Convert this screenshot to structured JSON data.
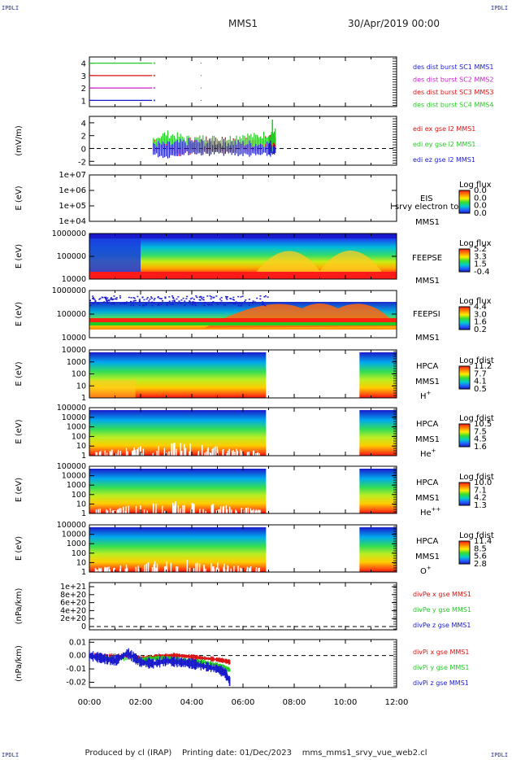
{
  "corners": {
    "top_left": "IPDLI",
    "top_right": "IPDLI",
    "bottom_left": "IPDLI",
    "bottom_right": "IPDLI"
  },
  "header": {
    "spacecraft": "MMS1",
    "datetime": "30/Apr/2019 00:00"
  },
  "footer": {
    "credit": "Produced by cl (IRAP)",
    "printing_date": "Printing date: 01/Dec/2023",
    "script": "mms_mms1_srvy_vue_web2.cl"
  },
  "colors": {
    "blue": "#1a1acc",
    "red": "#dd1111",
    "magenta": "#cc22cc",
    "green": "#22cc22",
    "frame": "#000000"
  },
  "chart_data": [
    {
      "panel": "burst",
      "type": "line",
      "yticks": [
        "1",
        "2",
        "3",
        "4"
      ],
      "series": [
        {
          "name": "des dist burst SC1 MMS1",
          "color": "#1a1acc",
          "level": 1,
          "x": [
            0.0,
            2.45
          ]
        },
        {
          "name": "des dist burst SC2 MMS2",
          "color": "#cc22cc",
          "level": 2,
          "x": [
            0.0,
            2.45
          ]
        },
        {
          "name": "des dist burst SC3 MMS3",
          "color": "#dd1111",
          "level": 3,
          "x": [
            0.0,
            2.45
          ]
        },
        {
          "name": "des dist burst SC4 MMS4",
          "color": "#22cc22",
          "level": 4,
          "x": [
            0.0,
            2.45
          ]
        }
      ]
    },
    {
      "panel": "edi",
      "type": "line",
      "ylabel": "(mV/m)",
      "yticks": [
        "-2",
        "0",
        "2",
        "4"
      ],
      "ylim": [
        -2.6,
        5
      ],
      "legend": [
        "edi ex gse l2 MMS1",
        "edi ey gse l2 MMS1",
        "edi ez gse l2 MMS1"
      ],
      "series": [
        {
          "name": "edi ex gse l2 MMS1",
          "color": "#dd1111",
          "x": [
            2.5,
            3.0,
            3.5,
            4.0,
            4.5,
            5.0,
            5.5,
            6.0,
            6.5,
            7.0,
            7.3
          ],
          "y": [
            0.2,
            0.5,
            -0.4,
            0.1,
            0.2,
            0.3,
            0.1,
            0.4,
            0.3,
            0.6,
            0.5
          ]
        },
        {
          "name": "edi ey gse l2 MMS1",
          "color": "#22cc22",
          "x": [
            2.5,
            3.0,
            3.5,
            4.0,
            4.5,
            5.0,
            5.5,
            6.0,
            6.5,
            7.0,
            7.3
          ],
          "y": [
            0.5,
            1.2,
            0.8,
            0.3,
            0.6,
            0.4,
            0.5,
            1.0,
            0.8,
            1.2,
            1.6
          ]
        },
        {
          "name": "edi ez gse l2 MMS1",
          "color": "#1a1acc",
          "x": [
            2.5,
            3.0,
            3.5,
            4.0,
            4.5,
            5.0,
            5.5,
            6.0,
            6.5,
            7.0,
            7.3
          ],
          "y": [
            -0.3,
            -0.6,
            -0.2,
            0.0,
            -0.2,
            -0.1,
            -0.2,
            -0.3,
            -0.4,
            -0.3,
            -0.4
          ]
        }
      ]
    },
    {
      "panel": "eis",
      "type": "heatmap",
      "ylabel": "E (eV)",
      "yticks": [
        "1e+04",
        "1e+05",
        "1e+06",
        "1e+07"
      ],
      "name": "EIS",
      "name2": "MMS1",
      "overlay": "l srvy electron to",
      "cbar_title": "Log flux",
      "cbar_ticks": [
        "0.0",
        "0.0",
        "0.0",
        "0.0"
      ]
    },
    {
      "panel": "feepse",
      "type": "heatmap",
      "ylabel": "E (eV)",
      "yticks": [
        "10000",
        "100000",
        "1000000"
      ],
      "name": "FEEPSE",
      "name2": "MMS1",
      "cbar_title": "Log flux",
      "cbar_ticks": [
        "5.2",
        "3.3",
        "1.5",
        "-0.4"
      ]
    },
    {
      "panel": "feepsi",
      "type": "heatmap",
      "ylabel": "E (eV)",
      "yticks": [
        "10000",
        "100000",
        "1000000"
      ],
      "name": "FEEPSI",
      "name2": "MMS1",
      "cbar_title": "Log flux",
      "cbar_ticks": [
        "4.4",
        "3.0",
        "1.6",
        "0.2"
      ]
    },
    {
      "panel": "hpca_h",
      "type": "heatmap",
      "ylabel": "E (eV)",
      "yticks": [
        "1",
        "10",
        "100",
        "1000",
        "10000"
      ],
      "name": "HPCA",
      "name2": "MMS1",
      "species": "H",
      "charge": "+",
      "cbar_title": "Log fdist",
      "cbar_ticks": [
        "11.2",
        "7.7",
        "4.1",
        "0.5"
      ],
      "gaps": [
        [
          6.9,
          10.55
        ]
      ]
    },
    {
      "panel": "hpca_he",
      "type": "heatmap",
      "ylabel": "E (eV)",
      "yticks": [
        "1",
        "10",
        "100",
        "1000",
        "10000",
        "100000"
      ],
      "name": "HPCA",
      "name2": "MMS1",
      "species": "He",
      "charge": "+",
      "cbar_title": "Log fdist",
      "cbar_ticks": [
        "10.5",
        "7.5",
        "4.5",
        "1.6"
      ],
      "gaps": [
        [
          6.9,
          10.55
        ]
      ]
    },
    {
      "panel": "hpca_he2",
      "type": "heatmap",
      "ylabel": "E (eV)",
      "yticks": [
        "1",
        "10",
        "100",
        "1000",
        "10000",
        "100000"
      ],
      "name": "HPCA",
      "name2": "MMS1",
      "species": "He",
      "charge": "++",
      "cbar_title": "Log fdist",
      "cbar_ticks": [
        "10.0",
        "7.1",
        "4.2",
        "1.3"
      ],
      "gaps": [
        [
          6.9,
          10.55
        ]
      ]
    },
    {
      "panel": "hpca_o",
      "type": "heatmap",
      "ylabel": "E (eV)",
      "yticks": [
        "1",
        "10",
        "100",
        "1000",
        "10000",
        "100000"
      ],
      "name": "HPCA",
      "name2": "MMS1",
      "species": "O",
      "charge": "+",
      "cbar_title": "Log fdist",
      "cbar_ticks": [
        "11.4",
        "8.5",
        "5.6",
        "2.8"
      ],
      "gaps": [
        [
          6.9,
          10.55
        ]
      ]
    },
    {
      "panel": "divpe",
      "type": "line",
      "ylabel": "(nPa/km)",
      "yticks": [
        "0",
        "2e+20",
        "4e+20",
        "6e+20",
        "8e+20",
        "1e+21"
      ],
      "legend": [
        "divPe x gse MMS1",
        "divPe y gse MMS1",
        "divPe z gse MMS1"
      ],
      "legend_colors": [
        "#dd1111",
        "#22cc22",
        "#1a1acc"
      ]
    },
    {
      "panel": "divpi",
      "type": "line",
      "ylabel": "(nPa/km)",
      "yticks": [
        "-0.02",
        "-0.01",
        "0.00",
        "0.01"
      ],
      "ylim": [
        -0.024,
        0.012
      ],
      "xlabel_ticks": [
        "00:00",
        "02:00",
        "04:00",
        "06:00",
        "08:00",
        "10:00",
        "12:00"
      ],
      "legend": [
        "divPi x gse MMS1",
        "divPi y gse MMS1",
        "divPi z gse MMS1"
      ],
      "series": [
        {
          "name": "divPi x gse MMS1",
          "color": "#dd1111",
          "x": [
            0.0,
            1.0,
            2.0,
            2.5,
            3.0,
            3.5,
            4.0,
            4.5,
            5.0,
            5.3,
            5.5
          ],
          "y": [
            0.0,
            0.0,
            -0.002,
            -0.001,
            0.0,
            0.0,
            -0.001,
            -0.002,
            -0.003,
            -0.004,
            -0.005
          ]
        },
        {
          "name": "divPi y gse MMS1",
          "color": "#22cc22",
          "x": [
            0.0,
            1.0,
            2.0,
            2.5,
            3.0,
            3.5,
            4.0,
            4.5,
            5.0,
            5.3,
            5.5
          ],
          "y": [
            -0.001,
            -0.002,
            -0.003,
            -0.002,
            -0.002,
            -0.003,
            -0.004,
            -0.005,
            -0.007,
            -0.009,
            -0.011
          ]
        },
        {
          "name": "divPi z gse MMS1",
          "color": "#1a1acc",
          "x": [
            0.0,
            0.5,
            1.0,
            1.5,
            2.0,
            2.5,
            3.0,
            3.5,
            4.0,
            4.5,
            5.0,
            5.3,
            5.5
          ],
          "y": [
            0.0,
            -0.002,
            -0.004,
            0.002,
            -0.005,
            -0.006,
            -0.004,
            -0.005,
            -0.006,
            -0.008,
            -0.01,
            -0.013,
            -0.02
          ]
        }
      ]
    }
  ]
}
